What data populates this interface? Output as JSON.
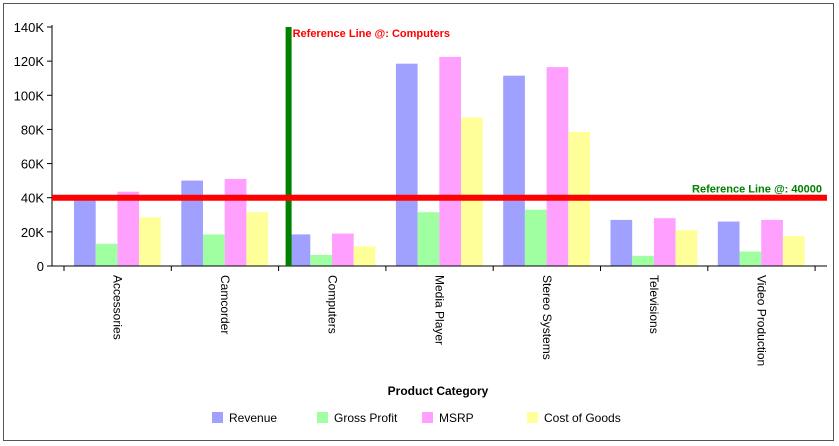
{
  "chart_data": {
    "type": "bar",
    "categories": [
      "Accessories",
      "Camcorder",
      "Computers",
      "Media Player",
      "Stereo Systems",
      "Televisions",
      "Video Production"
    ],
    "series": [
      {
        "name": "Revenue",
        "color": "#a0a0ff",
        "values": [
          39000,
          50000,
          18500,
          118500,
          111500,
          27000,
          26000
        ]
      },
      {
        "name": "Gross Profit",
        "color": "#a0ffa0",
        "values": [
          13000,
          18500,
          6500,
          31500,
          33000,
          6000,
          8500
        ]
      },
      {
        "name": "MSRP",
        "color": "#ffa0ff",
        "values": [
          43500,
          51000,
          19000,
          122500,
          116500,
          28000,
          27000
        ]
      },
      {
        "name": "Cost of Goods",
        "color": "#ffff99",
        "values": [
          28500,
          31500,
          11500,
          87000,
          78500,
          21000,
          17500
        ]
      }
    ],
    "ylim": [
      0,
      140000
    ],
    "yticks": [
      {
        "value": 0,
        "label": "0"
      },
      {
        "value": 20000,
        "label": "20K"
      },
      {
        "value": 40000,
        "label": "40K"
      },
      {
        "value": 60000,
        "label": "60K"
      },
      {
        "value": 80000,
        "label": "80K"
      },
      {
        "value": 100000,
        "label": "100K"
      },
      {
        "value": 120000,
        "label": "120K"
      },
      {
        "value": 140000,
        "label": "140K"
      }
    ],
    "xlabel": "Product Category",
    "ylabel": "",
    "legend_position": "bottom",
    "grid": false,
    "reference_lines": [
      {
        "orientation": "vertical",
        "category": "Computers",
        "label": "Reference Line @: Computers",
        "line_color": "#008000",
        "label_color": "#ff0000"
      },
      {
        "orientation": "horizontal",
        "value": 40000,
        "label": "Reference Line @: 40000",
        "line_color": "#ff0000",
        "label_color": "#008000"
      }
    ]
  }
}
